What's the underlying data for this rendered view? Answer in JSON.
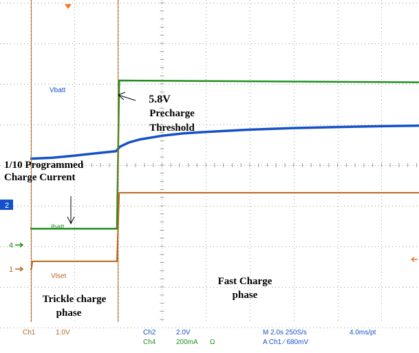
{
  "chart_data": {
    "type": "line",
    "x_unit": "s",
    "time_per_div": 2.0,
    "x_range": [
      0,
      20
    ],
    "grid": true,
    "colors": {
      "vbatt": "#1450c8",
      "ibatt": "#1f8f1f",
      "vlset": "#b5651d",
      "markers": "#1f8f1f",
      "trigger": "#f07820",
      "ch2_badge": "#1450c8"
    },
    "series": [
      {
        "name": "Vbatt",
        "channel": "Ch2",
        "x": [
          0,
          1,
          2,
          3,
          3.9,
          4.1,
          4.5,
          5,
          6,
          7,
          8,
          10,
          12,
          14,
          16,
          18,
          20
        ],
        "y": [
          4.25,
          4.3,
          4.4,
          4.52,
          4.62,
          4.85,
          5.05,
          5.2,
          5.38,
          5.5,
          5.57,
          5.68,
          5.76,
          5.81,
          5.85,
          5.88,
          5.9
        ],
        "label": "Vbatt"
      },
      {
        "name": "Ibatt",
        "channel": "Ch4",
        "x": [
          0,
          3.95,
          4.05,
          20
        ],
        "y": [
          0.08,
          0.08,
          0.81,
          0.8
        ],
        "label": "Ibatt"
      },
      {
        "name": "Vlset",
        "channel": "Ch1",
        "x": [
          0,
          0.05,
          0.1,
          3.95,
          4.05,
          20
        ],
        "y": [
          0,
          0,
          0.19,
          0.19,
          1.88,
          1.88
        ],
        "label": "Vlset"
      }
    ],
    "annotations": {
      "threshold_value": "5.8V",
      "threshold_line1": "Precharge",
      "threshold_line2": "Threshold",
      "current_line1": "1/10 Programmed",
      "current_line2": "Charge Current",
      "fast_line1": "Fast Charge",
      "fast_line2": "phase",
      "trickle_line1": "Trickle charge",
      "trickle_line2": "phase"
    },
    "markers": {
      "ch2": "2",
      "ch4": "4",
      "ch1": "1"
    },
    "status_bar": {
      "ch1_label": "Ch1",
      "ch1_scale": "1.0V",
      "ch2_label": "Ch2",
      "ch2_scale": "2.0V",
      "ch4_label": "Ch4",
      "ch4_scale": "200mA",
      "ch4_unit": "Ω",
      "timebase": "M 2.0s 250S/s",
      "trigger": "A Ch1 ⁄ 680mV",
      "resolution": "4.0ms/pt"
    }
  }
}
